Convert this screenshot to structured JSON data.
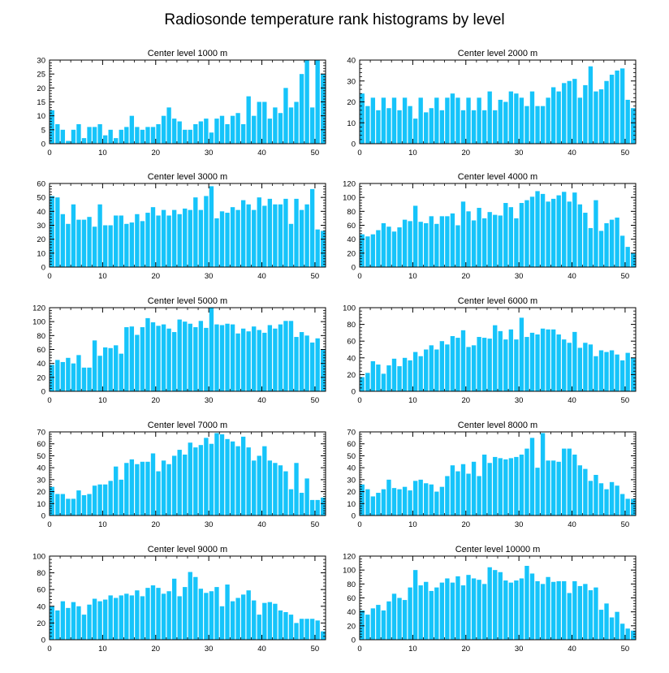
{
  "title": "Radiosonde temperature rank histograms by level",
  "bar_color": "#16c4fa",
  "chart_data": [
    {
      "type": "bar",
      "title": "Center level 1000 m",
      "xlim": [
        0,
        52
      ],
      "ylim": [
        0,
        30
      ],
      "xticks": [
        0,
        10,
        20,
        30,
        40,
        50
      ],
      "yticks": [
        0,
        5,
        10,
        15,
        20,
        25,
        30
      ],
      "x": [
        0,
        1,
        2,
        3,
        4,
        5,
        6,
        7,
        8,
        9,
        10,
        11,
        12,
        13,
        14,
        15,
        16,
        17,
        18,
        19,
        20,
        21,
        22,
        23,
        24,
        25,
        26,
        27,
        28,
        29,
        30,
        31,
        32,
        33,
        34,
        35,
        36,
        37,
        38,
        39,
        40,
        41,
        42,
        43,
        44,
        45,
        46,
        47,
        48,
        49,
        50,
        51
      ],
      "values": [
        12,
        7,
        5,
        1,
        5,
        7,
        2,
        6,
        6,
        7,
        3,
        5,
        2,
        5,
        6,
        10,
        6,
        5,
        6,
        6,
        7,
        10,
        13,
        9,
        8,
        5,
        5,
        7,
        8,
        9,
        4,
        9,
        10,
        7,
        10,
        11,
        7,
        17,
        10,
        15,
        15,
        9,
        13,
        11,
        20,
        13,
        15,
        25,
        30,
        13,
        30,
        25
      ]
    },
    {
      "type": "bar",
      "title": "Center level 2000 m",
      "xlim": [
        0,
        52
      ],
      "ylim": [
        0,
        40
      ],
      "xticks": [
        0,
        10,
        20,
        30,
        40,
        50
      ],
      "yticks": [
        0,
        10,
        20,
        30,
        40
      ],
      "x": [
        0,
        1,
        2,
        3,
        4,
        5,
        6,
        7,
        8,
        9,
        10,
        11,
        12,
        13,
        14,
        15,
        16,
        17,
        18,
        19,
        20,
        21,
        22,
        23,
        24,
        25,
        26,
        27,
        28,
        29,
        30,
        31,
        32,
        33,
        34,
        35,
        36,
        37,
        38,
        39,
        40,
        41,
        42,
        43,
        44,
        45,
        46,
        47,
        48,
        49,
        50,
        51
      ],
      "values": [
        24,
        18,
        22,
        16,
        22,
        17,
        22,
        16,
        22,
        18,
        12,
        22,
        15,
        17,
        22,
        16,
        22,
        24,
        22,
        16,
        22,
        16,
        22,
        16,
        25,
        16,
        21,
        20,
        25,
        24,
        22,
        18,
        25,
        18,
        18,
        22,
        27,
        25,
        29,
        30,
        31,
        22,
        28,
        37,
        25,
        26,
        30,
        33,
        35,
        36,
        21,
        17
      ]
    },
    {
      "type": "bar",
      "title": "Center level 3000 m",
      "xlim": [
        0,
        52
      ],
      "ylim": [
        0,
        60
      ],
      "xticks": [
        0,
        10,
        20,
        30,
        40,
        50
      ],
      "yticks": [
        0,
        10,
        20,
        30,
        40,
        50,
        60
      ],
      "x": [
        0,
        1,
        2,
        3,
        4,
        5,
        6,
        7,
        8,
        9,
        10,
        11,
        12,
        13,
        14,
        15,
        16,
        17,
        18,
        19,
        20,
        21,
        22,
        23,
        24,
        25,
        26,
        27,
        28,
        29,
        30,
        31,
        32,
        33,
        34,
        35,
        36,
        37,
        38,
        39,
        40,
        41,
        42,
        43,
        44,
        45,
        46,
        47,
        48,
        49,
        50,
        51
      ],
      "values": [
        51,
        50,
        38,
        31,
        45,
        34,
        34,
        36,
        29,
        45,
        30,
        30,
        37,
        37,
        31,
        32,
        38,
        33,
        39,
        43,
        37,
        41,
        37,
        41,
        38,
        42,
        41,
        50,
        41,
        51,
        58,
        35,
        40,
        39,
        43,
        41,
        48,
        45,
        41,
        50,
        44,
        49,
        45,
        45,
        49,
        31,
        49,
        41,
        45,
        56,
        27,
        26
      ]
    },
    {
      "type": "bar",
      "title": "Center level 4000 m",
      "xlim": [
        0,
        52
      ],
      "ylim": [
        0,
        120
      ],
      "xticks": [
        0,
        10,
        20,
        30,
        40,
        50
      ],
      "yticks": [
        0,
        20,
        40,
        60,
        80,
        100,
        120
      ],
      "x": [
        0,
        1,
        2,
        3,
        4,
        5,
        6,
        7,
        8,
        9,
        10,
        11,
        12,
        13,
        14,
        15,
        16,
        17,
        18,
        19,
        20,
        21,
        22,
        23,
        24,
        25,
        26,
        27,
        28,
        29,
        30,
        31,
        32,
        33,
        34,
        35,
        36,
        37,
        38,
        39,
        40,
        41,
        42,
        43,
        44,
        45,
        46,
        47,
        48,
        49,
        50,
        51
      ],
      "values": [
        47,
        44,
        47,
        53,
        63,
        58,
        51,
        57,
        68,
        66,
        88,
        65,
        63,
        73,
        62,
        73,
        73,
        77,
        60,
        94,
        80,
        67,
        85,
        70,
        79,
        75,
        74,
        92,
        86,
        70,
        92,
        96,
        101,
        109,
        105,
        94,
        98,
        103,
        108,
        94,
        107,
        90,
        78,
        56,
        96,
        52,
        63,
        68,
        71,
        45,
        29,
        20
      ]
    },
    {
      "type": "bar",
      "title": "Center level 5000 m",
      "xlim": [
        0,
        52
      ],
      "ylim": [
        0,
        120
      ],
      "xticks": [
        0,
        10,
        20,
        30,
        40,
        50
      ],
      "yticks": [
        0,
        20,
        40,
        60,
        80,
        100,
        120
      ],
      "x": [
        0,
        1,
        2,
        3,
        4,
        5,
        6,
        7,
        8,
        9,
        10,
        11,
        12,
        13,
        14,
        15,
        16,
        17,
        18,
        19,
        20,
        21,
        22,
        23,
        24,
        25,
        26,
        27,
        28,
        29,
        30,
        31,
        32,
        33,
        34,
        35,
        36,
        37,
        38,
        39,
        40,
        41,
        42,
        43,
        44,
        45,
        46,
        47,
        48,
        49,
        50,
        51
      ],
      "values": [
        38,
        45,
        42,
        48,
        40,
        52,
        34,
        34,
        73,
        51,
        63,
        62,
        66,
        54,
        92,
        93,
        81,
        92,
        105,
        99,
        94,
        96,
        90,
        85,
        103,
        100,
        97,
        92,
        101,
        91,
        120,
        96,
        95,
        97,
        96,
        83,
        90,
        86,
        93,
        88,
        84,
        95,
        90,
        96,
        101,
        101,
        78,
        85,
        80,
        70,
        76,
        60
      ]
    },
    {
      "type": "bar",
      "title": "Center level 6000 m",
      "xlim": [
        0,
        52
      ],
      "ylim": [
        0,
        100
      ],
      "xticks": [
        0,
        10,
        20,
        30,
        40,
        50
      ],
      "yticks": [
        0,
        20,
        40,
        60,
        80,
        100
      ],
      "x": [
        0,
        1,
        2,
        3,
        4,
        5,
        6,
        7,
        8,
        9,
        10,
        11,
        12,
        13,
        14,
        15,
        16,
        17,
        18,
        19,
        20,
        21,
        22,
        23,
        24,
        25,
        26,
        27,
        28,
        29,
        30,
        31,
        32,
        33,
        34,
        35,
        36,
        37,
        38,
        39,
        40,
        41,
        42,
        43,
        44,
        45,
        46,
        47,
        48,
        49,
        50,
        51
      ],
      "values": [
        17,
        22,
        36,
        32,
        21,
        31,
        39,
        30,
        40,
        37,
        47,
        42,
        50,
        55,
        50,
        60,
        56,
        66,
        64,
        73,
        53,
        55,
        65,
        64,
        63,
        79,
        72,
        62,
        74,
        62,
        88,
        65,
        70,
        68,
        75,
        74,
        74,
        68,
        62,
        58,
        71,
        52,
        58,
        56,
        42,
        49,
        47,
        49,
        44,
        37,
        46,
        40
      ]
    },
    {
      "type": "bar",
      "title": "Center level 7000 m",
      "xlim": [
        0,
        52
      ],
      "ylim": [
        0,
        70
      ],
      "xticks": [
        0,
        10,
        20,
        30,
        40,
        50
      ],
      "yticks": [
        0,
        10,
        20,
        30,
        40,
        50,
        60,
        70
      ],
      "x": [
        0,
        1,
        2,
        3,
        4,
        5,
        6,
        7,
        8,
        9,
        10,
        11,
        12,
        13,
        14,
        15,
        16,
        17,
        18,
        19,
        20,
        21,
        22,
        23,
        24,
        25,
        26,
        27,
        28,
        29,
        30,
        31,
        32,
        33,
        34,
        35,
        36,
        37,
        38,
        39,
        40,
        41,
        42,
        43,
        44,
        45,
        46,
        47,
        48,
        49,
        50,
        51
      ],
      "values": [
        24,
        18,
        18,
        14,
        14,
        21,
        17,
        18,
        25,
        26,
        26,
        29,
        41,
        30,
        44,
        47,
        43,
        45,
        45,
        52,
        37,
        46,
        43,
        50,
        55,
        51,
        61,
        57,
        59,
        65,
        60,
        69,
        68,
        64,
        62,
        58,
        66,
        57,
        46,
        50,
        58,
        46,
        44,
        42,
        37,
        22,
        44,
        19,
        31,
        13,
        13,
        15
      ]
    },
    {
      "type": "bar",
      "title": "Center level 8000 m",
      "xlim": [
        0,
        52
      ],
      "ylim": [
        0,
        70
      ],
      "xticks": [
        0,
        10,
        20,
        30,
        40,
        50
      ],
      "yticks": [
        0,
        10,
        20,
        30,
        40,
        50,
        60,
        70
      ],
      "x": [
        0,
        1,
        2,
        3,
        4,
        5,
        6,
        7,
        8,
        9,
        10,
        11,
        12,
        13,
        14,
        15,
        16,
        17,
        18,
        19,
        20,
        21,
        22,
        23,
        24,
        25,
        26,
        27,
        28,
        29,
        30,
        31,
        32,
        33,
        34,
        35,
        36,
        37,
        38,
        39,
        40,
        41,
        42,
        43,
        44,
        45,
        46,
        47,
        48,
        49,
        50,
        51
      ],
      "values": [
        26,
        22,
        16,
        19,
        22,
        30,
        23,
        22,
        24,
        21,
        29,
        30,
        27,
        26,
        20,
        24,
        33,
        42,
        37,
        43,
        35,
        45,
        33,
        51,
        44,
        49,
        48,
        47,
        48,
        49,
        51,
        56,
        65,
        40,
        69,
        46,
        46,
        45,
        56,
        56,
        51,
        42,
        39,
        29,
        34,
        27,
        22,
        28,
        25,
        18,
        14,
        14
      ]
    },
    {
      "type": "bar",
      "title": "Center level 9000 m",
      "xlim": [
        0,
        52
      ],
      "ylim": [
        0,
        100
      ],
      "xticks": [
        0,
        10,
        20,
        30,
        40,
        50
      ],
      "yticks": [
        0,
        20,
        40,
        60,
        80,
        100
      ],
      "x": [
        0,
        1,
        2,
        3,
        4,
        5,
        6,
        7,
        8,
        9,
        10,
        11,
        12,
        13,
        14,
        15,
        16,
        17,
        18,
        19,
        20,
        21,
        22,
        23,
        24,
        25,
        26,
        27,
        28,
        29,
        30,
        31,
        32,
        33,
        34,
        35,
        36,
        37,
        38,
        39,
        40,
        41,
        42,
        43,
        44,
        45,
        46,
        47,
        48,
        49,
        50,
        51
      ],
      "values": [
        40,
        35,
        46,
        38,
        45,
        40,
        30,
        42,
        49,
        46,
        48,
        53,
        50,
        53,
        55,
        53,
        59,
        52,
        62,
        65,
        62,
        55,
        58,
        73,
        52,
        63,
        81,
        75,
        61,
        56,
        58,
        63,
        40,
        66,
        46,
        50,
        54,
        59,
        47,
        30,
        44,
        45,
        43,
        35,
        33,
        30,
        20,
        25,
        25,
        25,
        23,
        10
      ]
    },
    {
      "type": "bar",
      "title": "Center level 10000 m",
      "xlim": [
        0,
        52
      ],
      "ylim": [
        0,
        120
      ],
      "xticks": [
        0,
        10,
        20,
        30,
        40,
        50
      ],
      "yticks": [
        0,
        20,
        40,
        60,
        80,
        100,
        120
      ],
      "x": [
        0,
        1,
        2,
        3,
        4,
        5,
        6,
        7,
        8,
        9,
        10,
        11,
        12,
        13,
        14,
        15,
        16,
        17,
        18,
        19,
        20,
        21,
        22,
        23,
        24,
        25,
        26,
        27,
        28,
        29,
        30,
        31,
        32,
        33,
        34,
        35,
        36,
        37,
        38,
        39,
        40,
        41,
        42,
        43,
        44,
        45,
        46,
        47,
        48,
        49,
        50,
        51
      ],
      "values": [
        42,
        36,
        45,
        50,
        42,
        55,
        66,
        60,
        57,
        75,
        100,
        78,
        83,
        70,
        75,
        82,
        88,
        82,
        91,
        78,
        93,
        88,
        86,
        80,
        104,
        100,
        97,
        85,
        82,
        85,
        88,
        106,
        95,
        84,
        80,
        90,
        83,
        84,
        84,
        67,
        84,
        77,
        80,
        71,
        75,
        43,
        52,
        32,
        40,
        23,
        16,
        13
      ]
    }
  ]
}
